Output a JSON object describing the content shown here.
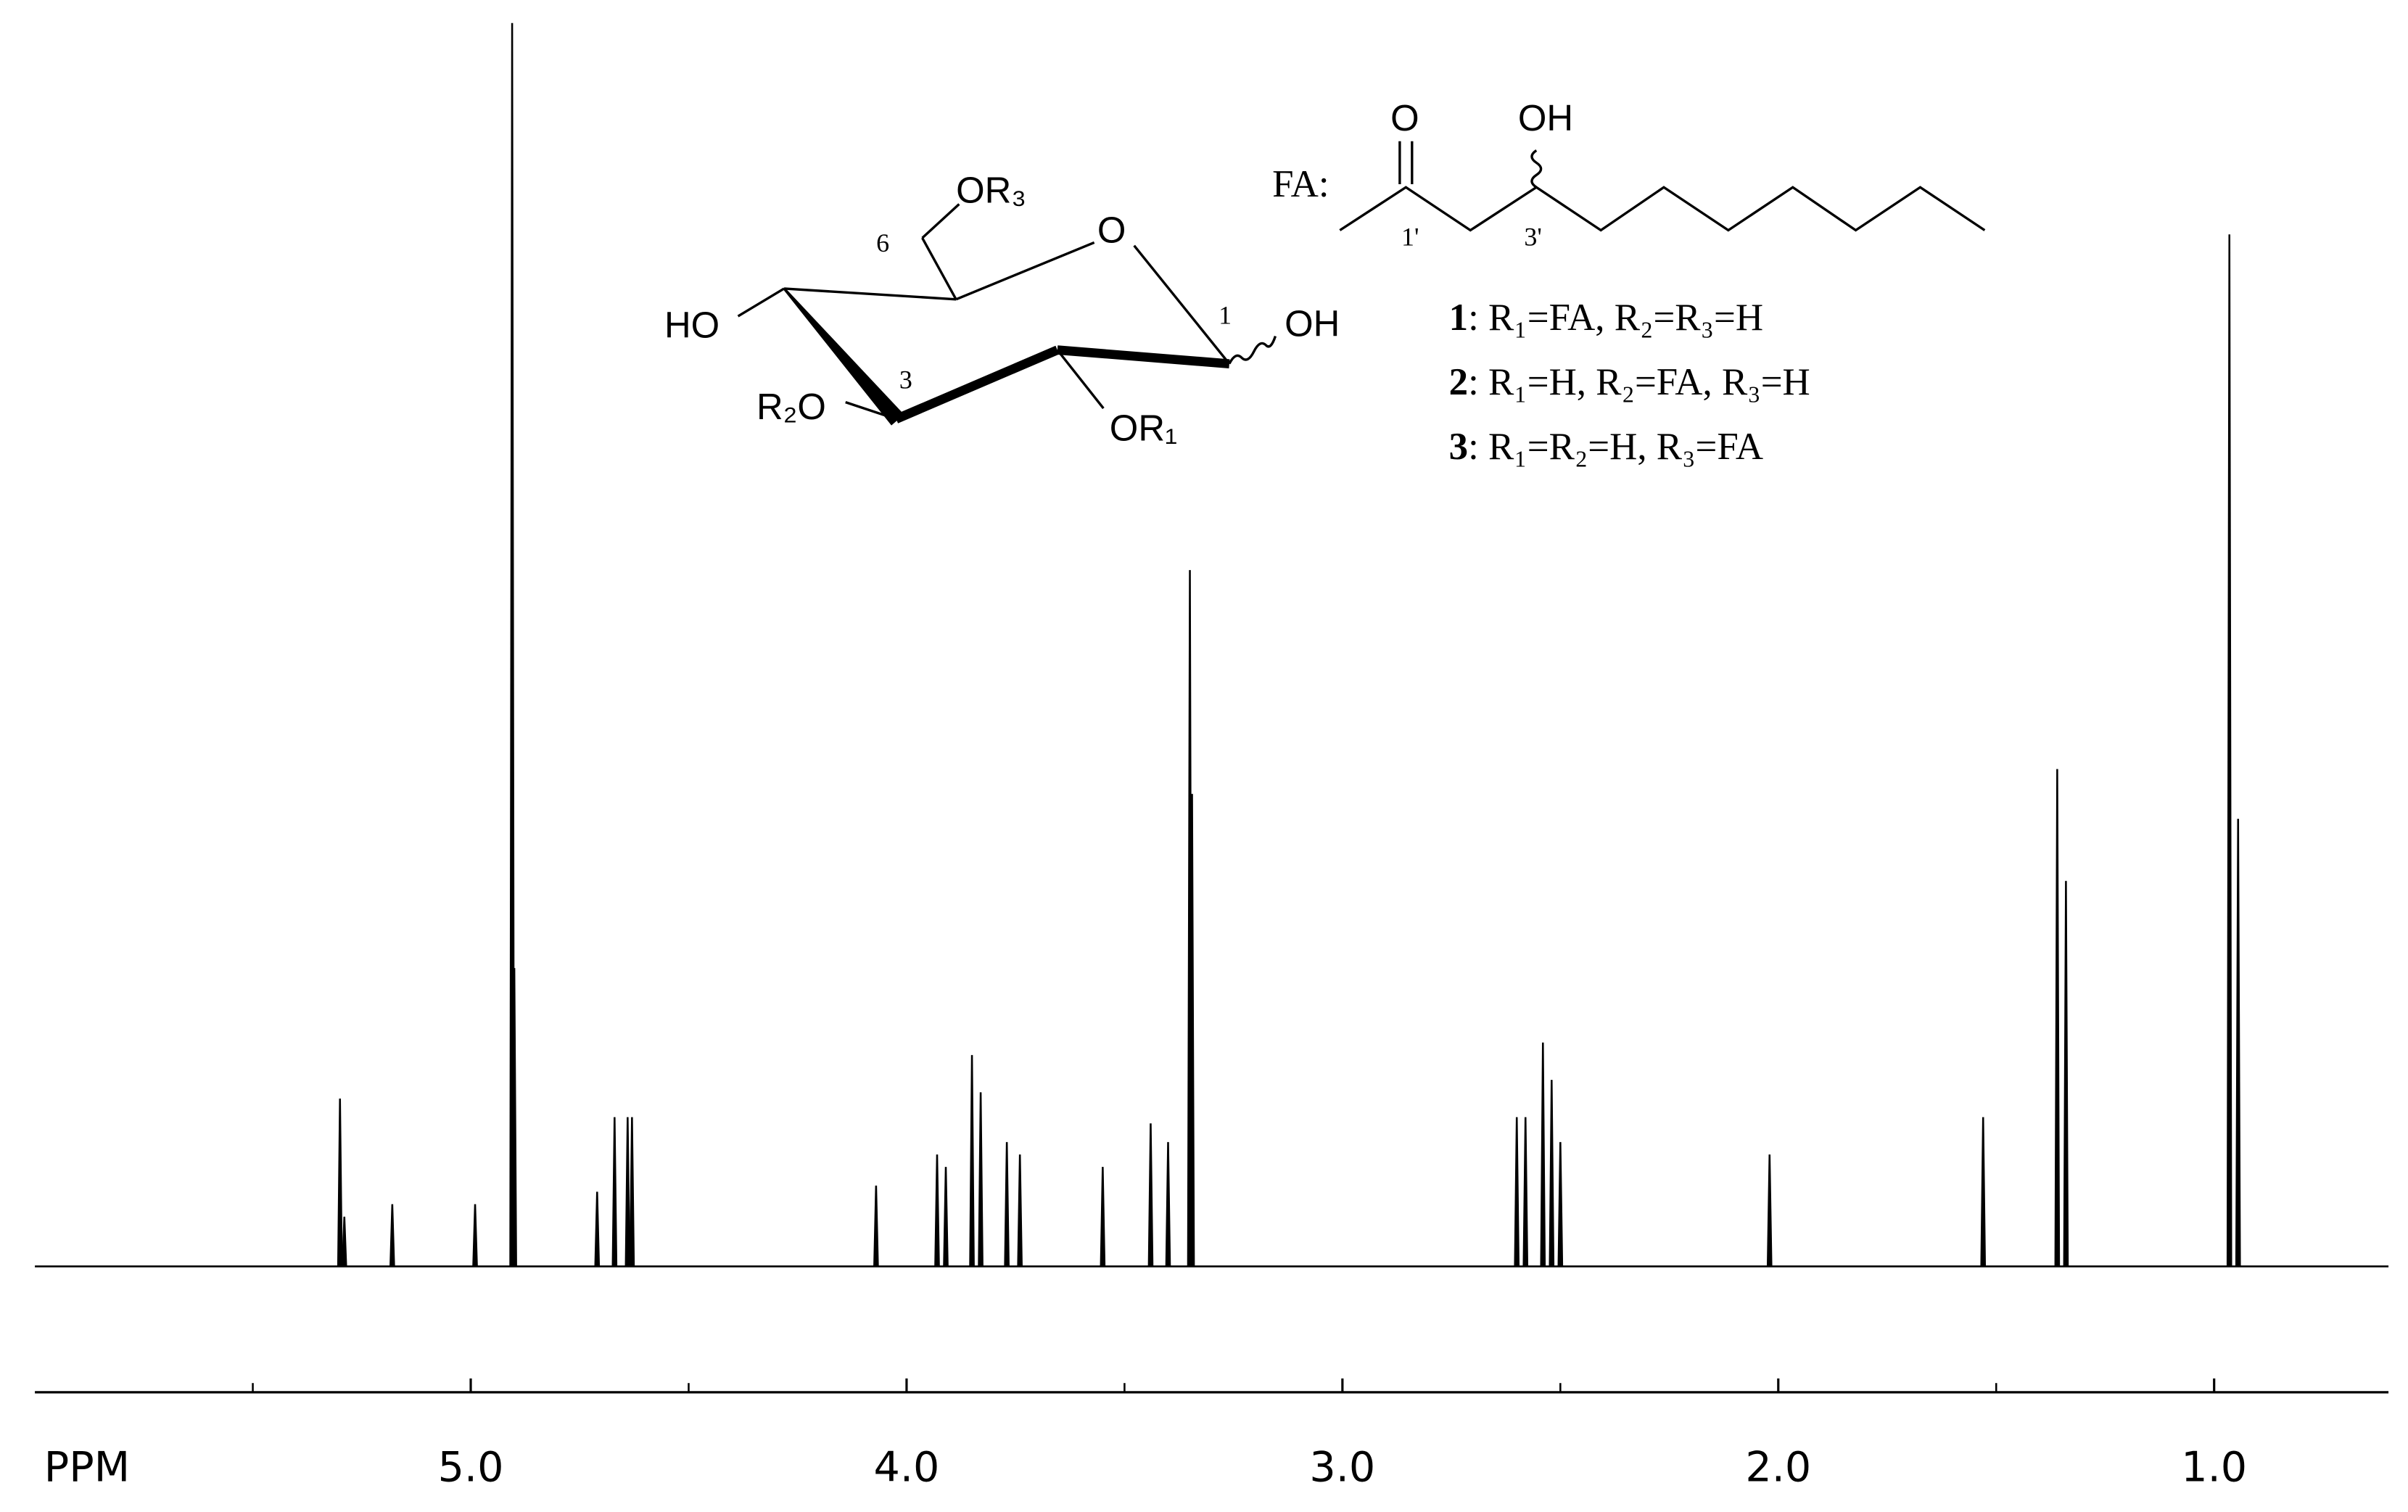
{
  "chart_data": {
    "type": "spectrum",
    "xlabel": "PPM",
    "xlim": [
      6.0,
      0.6
    ],
    "xticks": [
      {
        "value": 5,
        "label": "5.0"
      },
      {
        "value": 4,
        "label": "4.0"
      },
      {
        "value": 3,
        "label": "3.0"
      },
      {
        "value": 2,
        "label": "2.0"
      },
      {
        "value": 1,
        "label": "1.0"
      }
    ],
    "xminorticks": [
      5.5,
      4.5,
      3.5,
      2.5,
      1.5
    ],
    "ylim": [
      0,
      100
    ],
    "color": "#000000",
    "x": [
      5.3,
      5.29,
      5.18,
      4.99,
      4.905,
      4.9,
      4.71,
      4.67,
      4.64,
      4.63,
      4.07,
      3.93,
      3.91,
      3.85,
      3.83,
      3.77,
      3.74,
      3.55,
      3.44,
      3.4,
      3.35,
      3.345,
      2.6,
      2.58,
      2.54,
      2.52,
      2.5,
      2.02,
      1.53,
      1.36,
      1.34,
      0.965,
      0.945
    ],
    "values": [
      13.5,
      4,
      5,
      5,
      100,
      24,
      6,
      12,
      12,
      12,
      6.5,
      9,
      8,
      17,
      14,
      10,
      9,
      8,
      11.5,
      10,
      56,
      38,
      12,
      12,
      18,
      15,
      10,
      9,
      12,
      40,
      31,
      83,
      36
    ],
    "annotations": [
      "FA:",
      "O",
      "OH",
      "1'",
      "3'",
      "OR₃",
      "6",
      "O",
      "1",
      "OH",
      "HO",
      "3",
      "R₂O",
      "OR₁"
    ],
    "compounds": [
      {
        "number": "1",
        "text": ": R₁=FA, R₂=R₃=H"
      },
      {
        "number": "2",
        "text": ": R₁=H, R₂=FA, R₃=H"
      },
      {
        "number": "3",
        "text": ": R₁=R₂=H, R₃=FA"
      }
    ]
  }
}
